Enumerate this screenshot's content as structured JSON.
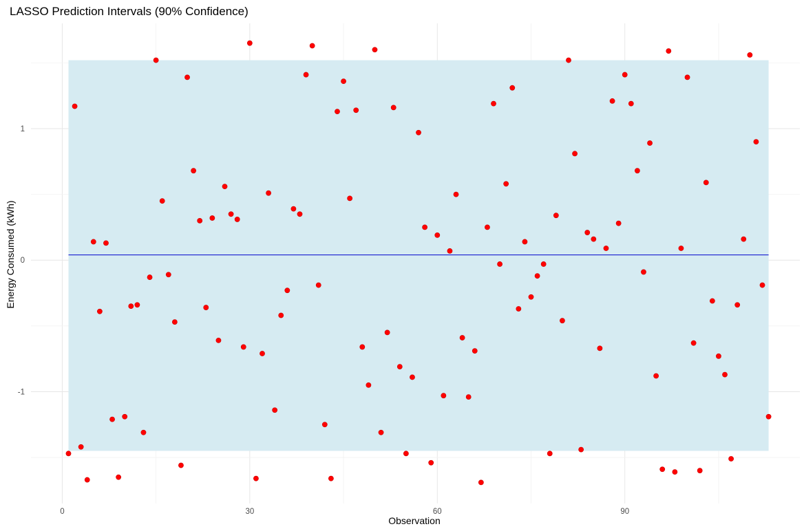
{
  "chart_data": {
    "type": "scatter",
    "title": "LASSO Prediction Intervals (90% Confidence)",
    "xlabel": "Observation",
    "ylabel": "Energy Consumed (kWh)",
    "xlim": [
      -5,
      118
    ],
    "ylim": [
      -1.85,
      1.8
    ],
    "x_ticks": [
      0,
      30,
      60,
      90
    ],
    "y_ticks": [
      -1,
      0,
      1
    ],
    "x_tick_labels": [
      "0",
      "30",
      "60",
      "90"
    ],
    "y_tick_labels": [
      "-1",
      "0",
      "1"
    ],
    "grid": true,
    "legend": "none",
    "interval": {
      "x_start": 1,
      "x_end": 113,
      "lower": -1.45,
      "upper": 1.52
    },
    "prediction_line": {
      "x_start": 1,
      "x_end": 113,
      "y": 0.04
    },
    "series": [
      {
        "values": [
          [
            1,
            -1.47
          ],
          [
            2,
            1.17
          ],
          [
            3,
            -1.42
          ],
          [
            4,
            -1.67
          ],
          [
            5,
            0.14
          ],
          [
            6,
            -0.39
          ],
          [
            7,
            0.13
          ],
          [
            8,
            -1.21
          ],
          [
            9,
            -1.65
          ],
          [
            10,
            -1.19
          ],
          [
            11,
            -0.35
          ],
          [
            12,
            -0.34
          ],
          [
            13,
            -1.31
          ],
          [
            14,
            -0.13
          ],
          [
            15,
            1.52
          ],
          [
            16,
            0.45
          ],
          [
            17,
            -0.11
          ],
          [
            18,
            -0.47
          ],
          [
            19,
            -1.56
          ],
          [
            20,
            1.39
          ],
          [
            21,
            0.68
          ],
          [
            22,
            0.3
          ],
          [
            23,
            -0.36
          ],
          [
            24,
            0.32
          ],
          [
            25,
            -0.61
          ],
          [
            26,
            0.56
          ],
          [
            27,
            0.35
          ],
          [
            28,
            0.31
          ],
          [
            29,
            -0.66
          ],
          [
            30,
            1.65
          ],
          [
            31,
            -1.66
          ],
          [
            32,
            -0.71
          ],
          [
            33,
            0.51
          ],
          [
            34,
            -1.14
          ],
          [
            35,
            -0.42
          ],
          [
            36,
            -0.23
          ],
          [
            37,
            0.39
          ],
          [
            38,
            0.35
          ],
          [
            39,
            1.41
          ],
          [
            40,
            1.63
          ],
          [
            41,
            -0.19
          ],
          [
            42,
            -1.25
          ],
          [
            43,
            -1.66
          ],
          [
            44,
            1.13
          ],
          [
            45,
            1.36
          ],
          [
            46,
            0.47
          ],
          [
            47,
            1.14
          ],
          [
            48,
            -0.66
          ],
          [
            49,
            -0.95
          ],
          [
            50,
            1.6
          ],
          [
            51,
            -1.31
          ],
          [
            52,
            -0.55
          ],
          [
            53,
            1.16
          ],
          [
            54,
            -0.81
          ],
          [
            55,
            -1.47
          ],
          [
            56,
            -0.89
          ],
          [
            57,
            0.97
          ],
          [
            58,
            0.25
          ],
          [
            59,
            -1.54
          ],
          [
            60,
            0.19
          ],
          [
            61,
            -1.03
          ],
          [
            62,
            0.07
          ],
          [
            63,
            0.5
          ],
          [
            64,
            -0.59
          ],
          [
            65,
            -1.04
          ],
          [
            66,
            -0.69
          ],
          [
            67,
            -1.69
          ],
          [
            68,
            0.25
          ],
          [
            69,
            1.19
          ],
          [
            70,
            -0.03
          ],
          [
            71,
            0.58
          ],
          [
            72,
            1.31
          ],
          [
            73,
            -0.37
          ],
          [
            74,
            0.14
          ],
          [
            75,
            -0.28
          ],
          [
            76,
            -0.12
          ],
          [
            77,
            -0.03
          ],
          [
            78,
            -1.47
          ],
          [
            79,
            0.34
          ],
          [
            80,
            -0.46
          ],
          [
            81,
            1.52
          ],
          [
            82,
            0.81
          ],
          [
            83,
            -1.44
          ],
          [
            84,
            0.21
          ],
          [
            85,
            0.16
          ],
          [
            86,
            -0.67
          ],
          [
            87,
            0.09
          ],
          [
            88,
            1.21
          ],
          [
            89,
            0.28
          ],
          [
            90,
            1.41
          ],
          [
            91,
            1.19
          ],
          [
            92,
            0.68
          ],
          [
            93,
            -0.09
          ],
          [
            94,
            0.89
          ],
          [
            95,
            -0.88
          ],
          [
            96,
            -1.59
          ],
          [
            97,
            1.59
          ],
          [
            98,
            -1.61
          ],
          [
            99,
            0.09
          ],
          [
            100,
            1.39
          ],
          [
            101,
            -0.63
          ],
          [
            102,
            -1.6
          ],
          [
            103,
            0.59
          ],
          [
            104,
            -0.31
          ],
          [
            105,
            -0.73
          ],
          [
            106,
            -0.87
          ],
          [
            107,
            -1.51
          ],
          [
            108,
            -0.34
          ],
          [
            109,
            0.16
          ],
          [
            110,
            1.56
          ],
          [
            111,
            0.9
          ],
          [
            112,
            -0.19
          ],
          [
            113,
            -1.19
          ]
        ]
      }
    ]
  },
  "colors": {
    "interval_fill": "#d6ebf2",
    "prediction_line": "#0000cc",
    "points": "#ff0000",
    "point_stroke": "#cc0000"
  }
}
